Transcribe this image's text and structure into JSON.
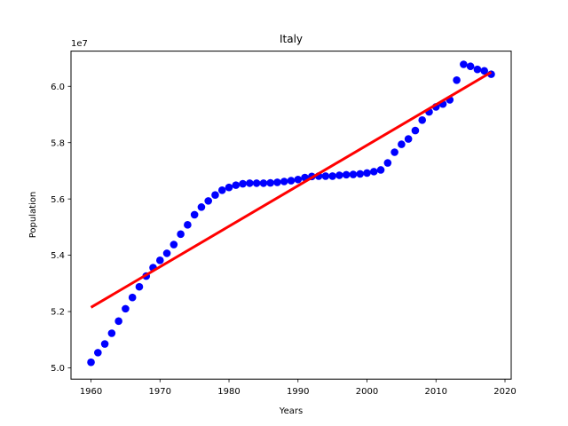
{
  "chart_data": {
    "type": "scatter",
    "title": "Italy",
    "xlabel": "Years",
    "ylabel": "Population",
    "y_multiplier_label": "1e7",
    "xlim": [
      1957.1,
      2020.9
    ],
    "ylim": [
      49600000.0,
      61250000.0
    ],
    "xticks": [
      1960,
      1970,
      1980,
      1990,
      2000,
      2010,
      2020
    ],
    "yticks": [
      5.0,
      5.2,
      5.4,
      5.6,
      5.8,
      6.0
    ],
    "ytick_scale": 10000000.0,
    "grid": false,
    "legend": "none",
    "series": [
      {
        "mark": "scatter",
        "color": "#0000ff",
        "x": [
          1960,
          1961,
          1962,
          1963,
          1964,
          1965,
          1966,
          1967,
          1968,
          1969,
          1970,
          1971,
          1972,
          1973,
          1974,
          1975,
          1976,
          1977,
          1978,
          1979,
          1980,
          1981,
          1982,
          1983,
          1984,
          1985,
          1986,
          1987,
          1988,
          1989,
          1990,
          1991,
          1992,
          1993,
          1994,
          1995,
          1996,
          1997,
          1998,
          1999,
          2000,
          2001,
          2002,
          2003,
          2004,
          2005,
          2006,
          2007,
          2008,
          2009,
          2010,
          2011,
          2012,
          2013,
          2014,
          2015,
          2016,
          2017,
          2018
        ],
        "y": [
          50200000,
          50540000,
          50850000,
          51230000,
          51660000,
          52100000,
          52500000,
          52880000,
          53260000,
          53560000,
          53820000,
          54070000,
          54380000,
          54750000,
          55080000,
          55440000,
          55710000,
          55930000,
          56140000,
          56310000,
          56410000,
          56490000,
          56540000,
          56560000,
          56560000,
          56560000,
          56570000,
          56590000,
          56620000,
          56650000,
          56690000,
          56760000,
          56800000,
          56810000,
          56810000,
          56810000,
          56840000,
          56860000,
          56870000,
          56890000,
          56920000,
          56970000,
          57030000,
          57280000,
          57660000,
          57940000,
          58130000,
          58430000,
          58800000,
          59090000,
          59270000,
          59370000,
          59520000,
          60220000,
          60780000,
          60710000,
          60600000,
          60550000,
          60430000
        ]
      },
      {
        "mark": "line",
        "color": "#ff0000",
        "x": [
          1960,
          2018
        ],
        "y": [
          52150000,
          60500000
        ]
      }
    ]
  }
}
